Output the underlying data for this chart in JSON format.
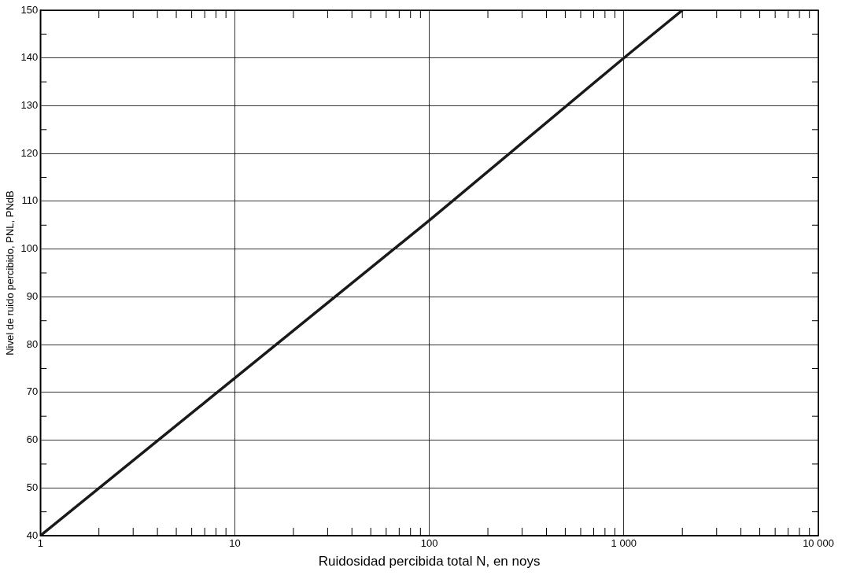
{
  "chart_data": {
    "type": "line",
    "xlabel": "Ruidosidad percibida total N, en noys",
    "ylabel": "Nivel de ruido percibido, PNL, PNdB",
    "x": [
      1,
      10,
      100,
      1000,
      2000
    ],
    "series": [
      {
        "color": "#1a1a1a",
        "values": [
          40,
          73,
          106,
          140,
          150
        ]
      }
    ],
    "log": "x",
    "xlim": [
      1,
      10000
    ],
    "xticks": [
      1,
      {
        "value": 2,
        "label": null
      },
      {
        "value": 3,
        "label": null
      },
      {
        "value": 4,
        "label": null
      },
      {
        "value": 5,
        "label": null
      },
      {
        "value": 6,
        "label": null
      },
      {
        "value": 7,
        "label": null
      },
      {
        "value": 8,
        "label": null
      },
      {
        "value": 9,
        "label": null
      },
      10,
      {
        "value": 20,
        "label": null
      },
      {
        "value": 30,
        "label": null
      },
      {
        "value": 40,
        "label": null
      },
      {
        "value": 50,
        "label": null
      },
      {
        "value": 60,
        "label": null
      },
      {
        "value": 70,
        "label": null
      },
      {
        "value": 80,
        "label": null
      },
      {
        "value": 90,
        "label": null
      },
      100,
      {
        "value": 200,
        "label": null
      },
      {
        "value": 300,
        "label": null
      },
      {
        "value": 400,
        "label": null
      },
      {
        "value": 500,
        "label": null
      },
      {
        "value": 600,
        "label": null
      },
      {
        "value": 700,
        "label": null
      },
      {
        "value": 800,
        "label": null
      },
      {
        "value": 900,
        "label": null
      },
      {
        "value": 1000,
        "label": "1 000"
      },
      {
        "value": 2000,
        "label": null
      },
      {
        "value": 3000,
        "label": null
      },
      {
        "value": 4000,
        "label": null
      },
      {
        "value": 5000,
        "label": null
      },
      {
        "value": 6000,
        "label": null
      },
      {
        "value": 7000,
        "label": null
      },
      {
        "value": 8000,
        "label": null
      },
      {
        "value": 9000,
        "label": null
      },
      {
        "value": 10000,
        "label": "10 000"
      }
    ],
    "ylim": [
      40,
      150
    ],
    "yticks": [
      40,
      {
        "value": 45,
        "label": null
      },
      50,
      {
        "value": 55,
        "label": null
      },
      60,
      {
        "value": 65,
        "label": null
      },
      70,
      {
        "value": 75,
        "label": null
      },
      80,
      {
        "value": 85,
        "label": null
      },
      90,
      {
        "value": 95,
        "label": null
      },
      100,
      {
        "value": 105,
        "label": null
      },
      110,
      {
        "value": 115,
        "label": null
      },
      120,
      {
        "value": 125,
        "label": null
      },
      130,
      {
        "value": 135,
        "label": null
      },
      140,
      {
        "value": 145,
        "label": null
      },
      150
    ],
    "grid": true,
    "legend": false,
    "marker": "none",
    "line_style": "solid"
  }
}
